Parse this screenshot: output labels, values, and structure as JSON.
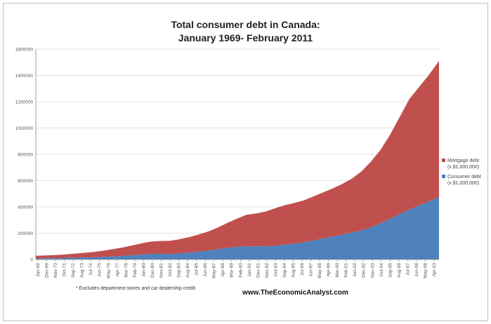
{
  "chart_data": {
    "type": "area",
    "stacked": true,
    "title_line1": "Total consumer debt in Canada:",
    "title_line2": "January 1969- February 2011",
    "xlabel": "",
    "ylabel": "",
    "ylim": [
      0,
      1600000
    ],
    "y_ticks": [
      0,
      200000,
      400000,
      600000,
      800000,
      1000000,
      1200000,
      1400000,
      1600000
    ],
    "grid": "horizontal",
    "legend_position": "right",
    "x_tick_labels": [
      "Jan-69",
      "Dec-69",
      "Nov-70",
      "Oct-71",
      "Sep-72",
      "Aug-73",
      "Jul-74",
      "Jun-75",
      "May-76",
      "Apr-77",
      "Mar-78",
      "Feb-79",
      "Jan-80",
      "Dec-80",
      "Nov-81",
      "Oct-82",
      "Sep-83",
      "Aug-84",
      "Jul-85",
      "Jun-86",
      "May-87",
      "Apr-88",
      "Mar-89",
      "Feb-90",
      "Jan-91",
      "Dec-91",
      "Nov-92",
      "Oct-93",
      "Sep-94",
      "Aug-95",
      "Jul-96",
      "Jun-97",
      "May-98",
      "Apr-99",
      "Mar-00",
      "Feb-01",
      "Jan-02",
      "Dec-02",
      "Nov-03",
      "Oct-04",
      "Sep-05",
      "Aug-06",
      "Jul-07",
      "Jun-08",
      "May-09",
      "Apr-10"
    ],
    "x": [
      1969.0,
      1970.0,
      1971.0,
      1972.0,
      1973.0,
      1974.0,
      1975.0,
      1976.0,
      1977.0,
      1978.0,
      1979.0,
      1980.0,
      1981.0,
      1982.0,
      1983.0,
      1984.0,
      1985.0,
      1986.0,
      1987.0,
      1988.0,
      1989.0,
      1990.0,
      1991.0,
      1992.0,
      1993.0,
      1994.0,
      1995.0,
      1996.0,
      1997.0,
      1998.0,
      1999.0,
      2000.0,
      2001.0,
      2002.0,
      2003.0,
      2004.0,
      2005.0,
      2006.0,
      2007.0,
      2008.0,
      2009.0,
      2010.0,
      2011.1
    ],
    "series": [
      {
        "name": "Consumer debt (x $1,000,000)",
        "color": "#4f81bd",
        "values": [
          8000,
          9000,
          10000,
          11000,
          13000,
          15000,
          17000,
          20000,
          23000,
          27000,
          32000,
          37000,
          43000,
          43000,
          42000,
          46000,
          52000,
          60000,
          68000,
          78000,
          88000,
          96000,
          100000,
          100000,
          100000,
          105000,
          113000,
          120000,
          130000,
          145000,
          160000,
          175000,
          190000,
          205000,
          220000,
          245000,
          275000,
          310000,
          345000,
          380000,
          410000,
          440000,
          475000
        ]
      },
      {
        "name": "Mortgage debt (x $1,000,000)",
        "color": "#c0504d",
        "values": [
          20000,
          22000,
          24000,
          27000,
          31000,
          35000,
          40000,
          47000,
          55000,
          64000,
          74000,
          85000,
          93000,
          98000,
          100000,
          108000,
          118000,
          130000,
          145000,
          165000,
          190000,
          215000,
          240000,
          250000,
          265000,
          285000,
          300000,
          310000,
          320000,
          335000,
          350000,
          365000,
          385000,
          410000,
          450000,
          500000,
          560000,
          640000,
          740000,
          840000,
          900000,
          960000,
          1035000
        ]
      }
    ],
    "annotations": [
      "* Excludes department stores and car dealership credit.",
      "www.TheEconomicAnalyst.com"
    ]
  }
}
